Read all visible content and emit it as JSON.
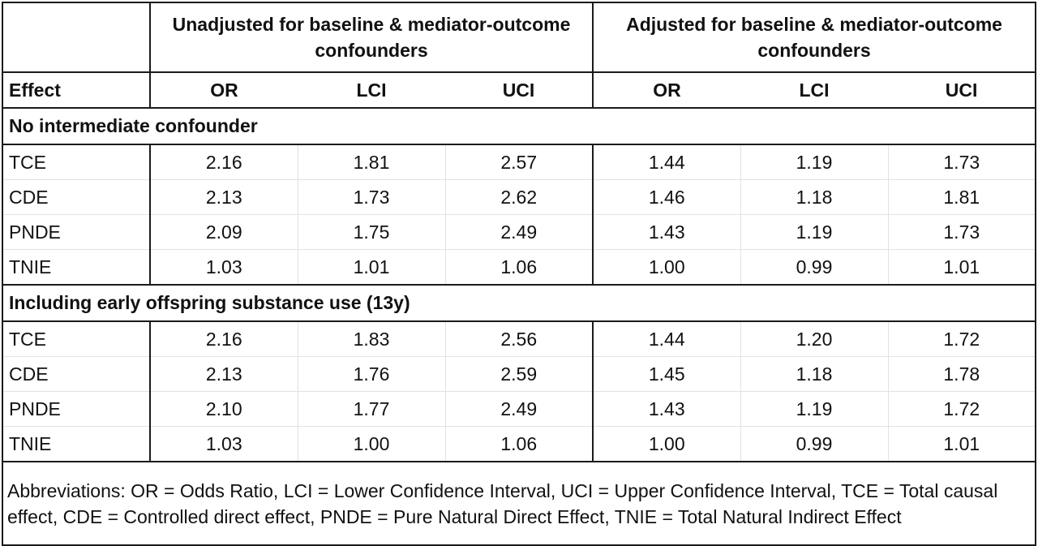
{
  "groups": [
    "Unadjusted for baseline & mediator-outcome confounders",
    "Adjusted for baseline & mediator-outcome confounders"
  ],
  "columns": [
    "Effect",
    "OR",
    "LCI",
    "UCI",
    "OR",
    "LCI",
    "UCI"
  ],
  "sections": [
    {
      "title": "No intermediate confounder",
      "rows": [
        [
          "TCE",
          "2.16",
          "1.81",
          "2.57",
          "1.44",
          "1.19",
          "1.73"
        ],
        [
          "CDE",
          "2.13",
          "1.73",
          "2.62",
          "1.46",
          "1.18",
          "1.81"
        ],
        [
          "PNDE",
          "2.09",
          "1.75",
          "2.49",
          "1.43",
          "1.19",
          "1.73"
        ],
        [
          "TNIE",
          "1.03",
          "1.01",
          "1.06",
          "1.00",
          "0.99",
          "1.01"
        ]
      ]
    },
    {
      "title": "Including early offspring substance use (13y)",
      "rows": [
        [
          "TCE",
          "2.16",
          "1.83",
          "2.56",
          "1.44",
          "1.20",
          "1.72"
        ],
        [
          "CDE",
          "2.13",
          "1.76",
          "2.59",
          "1.45",
          "1.18",
          "1.78"
        ],
        [
          "PNDE",
          "2.10",
          "1.77",
          "2.49",
          "1.43",
          "1.19",
          "1.72"
        ],
        [
          "TNIE",
          "1.03",
          "1.00",
          "1.06",
          "1.00",
          "0.99",
          "1.01"
        ]
      ]
    }
  ],
  "footnote": "Abbreviations: OR = Odds Ratio, LCI = Lower Confidence Interval, UCI = Upper Confidence Interval, TCE = Total causal effect, CDE = Controlled direct effect, PNDE = Pure Natural Direct Effect, TNIE = Total Natural Indirect Effect"
}
